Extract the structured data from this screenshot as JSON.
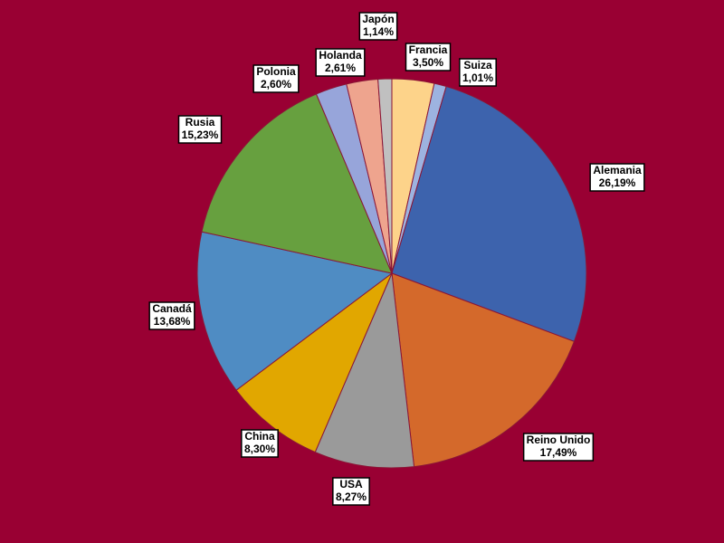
{
  "chart_data": {
    "type": "pie",
    "categories": [
      "Francia",
      "Suiza",
      "Alemania",
      "Reino Unido",
      "USA",
      "China",
      "Canadá",
      "Rusia",
      "Polonia",
      "Holanda",
      "Japón"
    ],
    "values": [
      3.5,
      1.01,
      26.19,
      17.49,
      8.27,
      8.3,
      13.68,
      15.23,
      2.6,
      2.61,
      1.14
    ],
    "value_labels": [
      "3,50%",
      "1,01%",
      "26,19%",
      "17,49%",
      "8,27%",
      "8,30%",
      "13,68%",
      "15,23%",
      "2,60%",
      "2,61%",
      "1,14%"
    ],
    "colors": [
      "#fdd38a",
      "#9db3e0",
      "#3d63ad",
      "#d4692b",
      "#9a9a9a",
      "#e1a700",
      "#4f8cc3",
      "#67a03f",
      "#97a5da",
      "#eea48e",
      "#c0c0c0"
    ]
  }
}
